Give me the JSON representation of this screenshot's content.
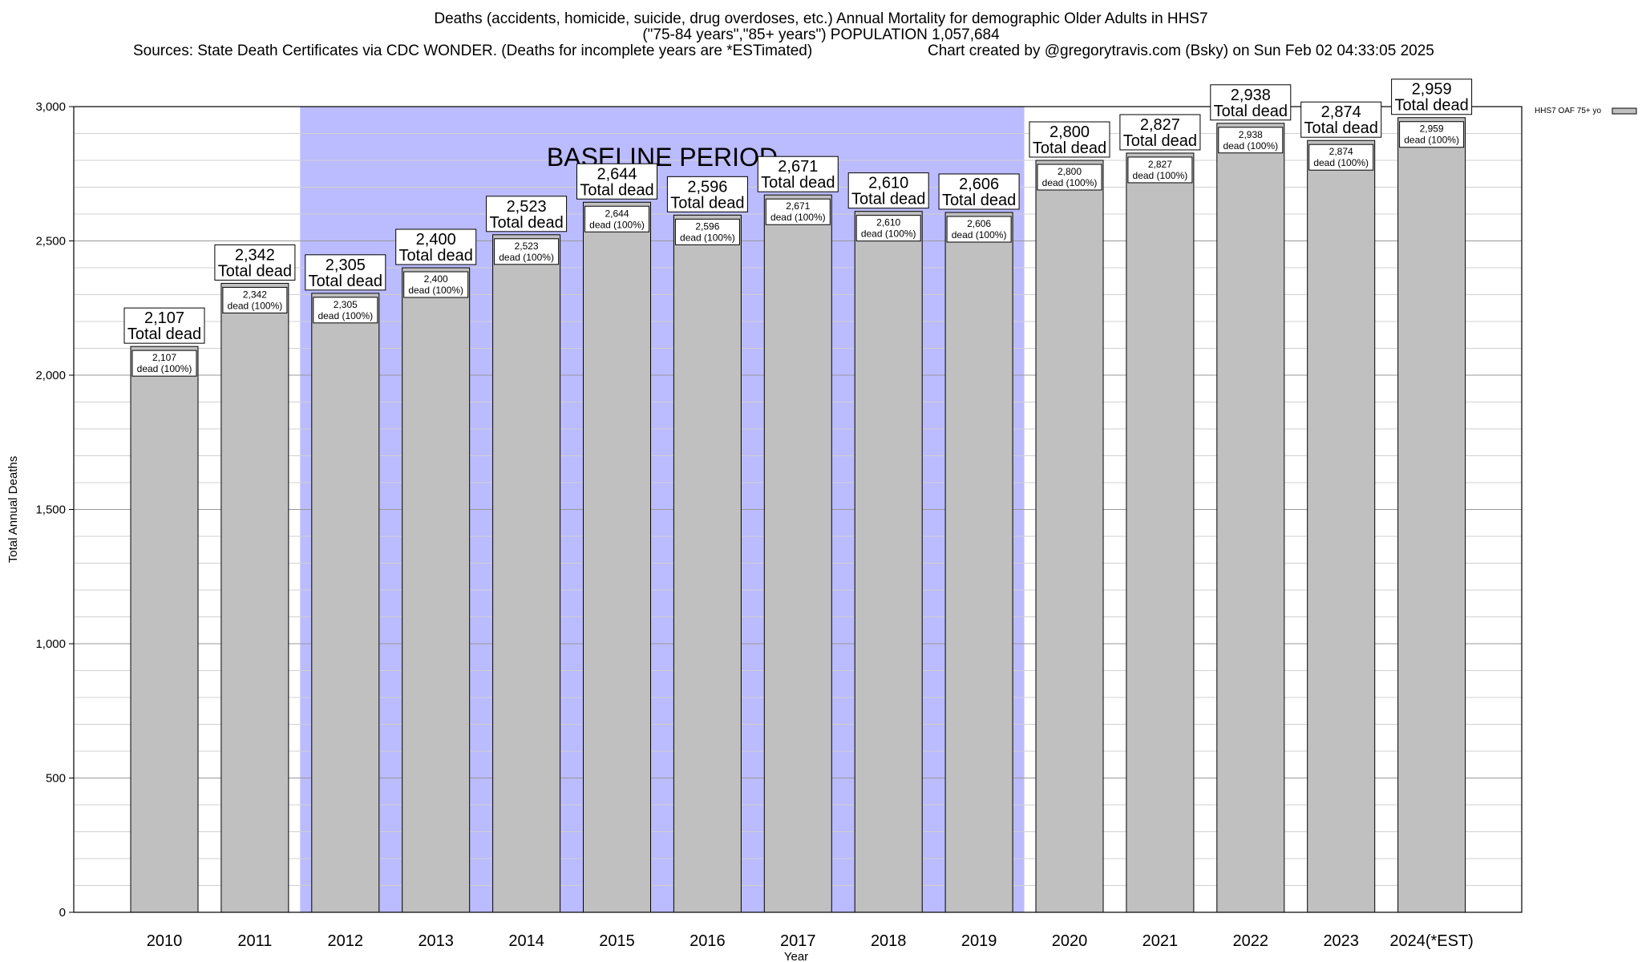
{
  "header": {
    "title_line1": "Deaths (accidents, homicide, suicide, drug overdoses, etc.) Annual Mortality for demographic Older Adults in HHS7",
    "title_line2": "(\"75-84 years\",\"85+ years\") POPULATION 1,057,684",
    "sources": "Sources: State Death Certificates via CDC WONDER. (Deaths for incomplete years are *ESTimated)",
    "credit": "Chart created by @gregorytravis.com (Bsky) on Sun Feb 02 04:33:05 2025"
  },
  "chart_data": {
    "type": "bar",
    "categories": [
      "2010",
      "2011",
      "2012",
      "2013",
      "2014",
      "2015",
      "2016",
      "2017",
      "2018",
      "2019",
      "2020",
      "2021",
      "2022",
      "2023",
      "2024(*EST)"
    ],
    "series": [
      {
        "name": "HHS7 OAF 75+ yo",
        "values": [
          2107,
          2342,
          2305,
          2400,
          2523,
          2644,
          2596,
          2671,
          2610,
          2606,
          2800,
          2827,
          2938,
          2874,
          2959
        ],
        "value_labels": [
          "2,107",
          "2,342",
          "2,305",
          "2,400",
          "2,523",
          "2,644",
          "2,596",
          "2,671",
          "2,610",
          "2,606",
          "2,800",
          "2,827",
          "2,938",
          "2,874",
          "2,959"
        ],
        "color": "#c0c0c0"
      }
    ],
    "bar_label_suffix": "Total dead",
    "inner_label_suffix": "dead (100%)",
    "xlabel": "Year",
    "ylabel": "Total Annual Deaths",
    "ylim": [
      0,
      3000
    ],
    "yticks": [
      0,
      500,
      1000,
      1500,
      2000,
      2500,
      3000
    ],
    "ytick_labels": [
      "0",
      "500",
      "1,000",
      "1,500",
      "2,000",
      "2,500",
      "3,000"
    ],
    "minor_grid_step": 100,
    "grid": true,
    "legend_position": "top-right",
    "baseline_period": {
      "label": "BASELINE PERIOD",
      "start": "2012",
      "end": "2019",
      "color": "#bbbbff"
    }
  }
}
